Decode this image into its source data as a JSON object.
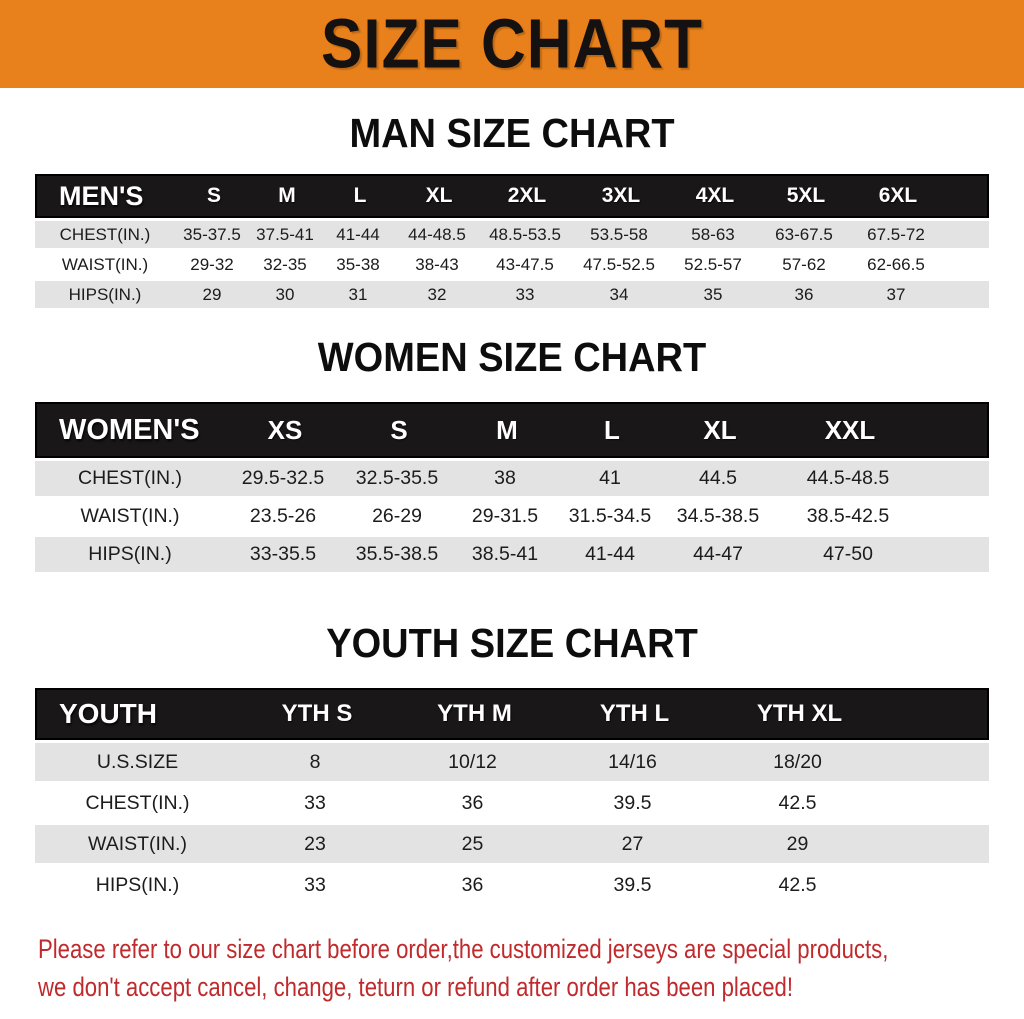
{
  "banner": {
    "title": "SIZE CHART",
    "bg": "#E8801B",
    "text_color": "#141110"
  },
  "sections": [
    {
      "heading": "MAN SIZE CHART",
      "table": {
        "header_label": "MEN'S",
        "columns": [
          "S",
          "M",
          "L",
          "XL",
          "2XL",
          "3XL",
          "4XL",
          "5XL",
          "6XL"
        ],
        "rows": [
          {
            "label": "CHEST(IN.)",
            "values": [
              "35-37.5",
              "37.5-41",
              "41-44",
              "44-48.5",
              "48.5-53.5",
              "53.5-58",
              "58-63",
              "63-67.5",
              "67.5-72"
            ]
          },
          {
            "label": "WAIST(IN.)",
            "values": [
              "29-32",
              "32-35",
              "35-38",
              "38-43",
              "43-47.5",
              "47.5-52.5",
              "52.5-57",
              "57-62",
              "62-66.5"
            ]
          },
          {
            "label": "HIPS(IN.)",
            "values": [
              "29",
              "30",
              "31",
              "32",
              "33",
              "34",
              "35",
              "36",
              "37"
            ]
          }
        ]
      }
    },
    {
      "heading": "WOMEN SIZE CHART",
      "table": {
        "header_label": "WOMEN'S",
        "columns": [
          "XS",
          "S",
          "M",
          "L",
          "XL",
          "XXL"
        ],
        "rows": [
          {
            "label": "CHEST(IN.)",
            "values": [
              "29.5-32.5",
              "32.5-35.5",
              "38",
              "41",
              "44.5",
              "44.5-48.5"
            ]
          },
          {
            "label": "WAIST(IN.)",
            "values": [
              "23.5-26",
              "26-29",
              "29-31.5",
              "31.5-34.5",
              "34.5-38.5",
              "38.5-42.5"
            ]
          },
          {
            "label": "HIPS(IN.)",
            "values": [
              "33-35.5",
              "35.5-38.5",
              "38.5-41",
              "41-44",
              "44-47",
              "47-50"
            ]
          }
        ]
      }
    },
    {
      "heading": "YOUTH SIZE CHART",
      "table": {
        "header_label": "YOUTH",
        "columns": [
          "YTH S",
          "YTH M",
          "YTH L",
          "YTH XL"
        ],
        "rows": [
          {
            "label": "U.S.SIZE",
            "values": [
              "8",
              "10/12",
              "14/16",
              "18/20"
            ]
          },
          {
            "label": "CHEST(IN.)",
            "values": [
              "33",
              "36",
              "39.5",
              "42.5"
            ]
          },
          {
            "label": "WAIST(IN.)",
            "values": [
              "23",
              "25",
              "27",
              "29"
            ]
          },
          {
            "label": "HIPS(IN.)",
            "values": [
              "33",
              "36",
              "39.5",
              "42.5"
            ]
          }
        ]
      }
    }
  ],
  "footnote": {
    "color": "#C02A2C",
    "lines": [
      "Please refer to our size chart before order,the customized jerseys are special products,",
      "we don't accept cancel, change, teturn or refund after order has been placed!"
    ]
  }
}
